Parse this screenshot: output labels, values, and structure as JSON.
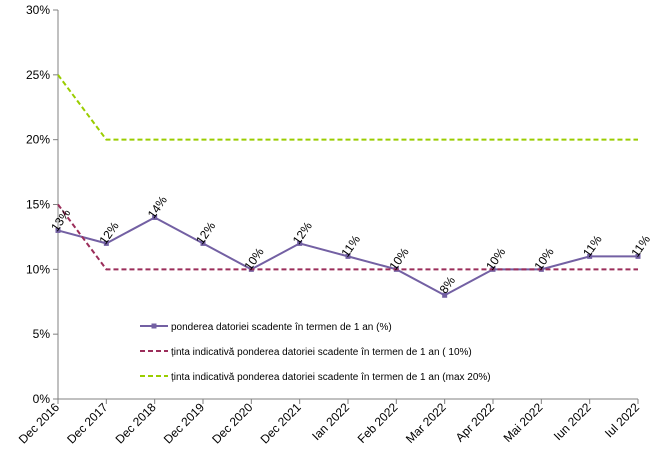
{
  "chart_data": {
    "type": "line",
    "categories": [
      "Dec 2016",
      "Dec 2017",
      "Dec 2018",
      "Dec 2019",
      "Dec 2020",
      "Dec 2021",
      "Ian 2022",
      "Feb 2022",
      "Mar 2022",
      "Apr 2022",
      "Mai 2022",
      "Iun 2022",
      "Iul 2022"
    ],
    "ylim": [
      0,
      30
    ],
    "yticks": [
      0,
      5,
      10,
      15,
      20,
      25,
      30
    ],
    "ytick_labels": [
      "0%",
      "5%",
      "10%",
      "15%",
      "20%",
      "25%",
      "30%"
    ],
    "grid": false,
    "legend_position": "bottom-left inside plot",
    "series": [
      {
        "name": "ponderea datoriei scadente în termen de 1 an (%)",
        "values": [
          13,
          12,
          14,
          12,
          10,
          12,
          11,
          10,
          8,
          10,
          10,
          11,
          11
        ],
        "data_labels": [
          "13%",
          "12%",
          "14%",
          "12%",
          "10%",
          "12%",
          "11%",
          "10%",
          "8%",
          "10%",
          "10%",
          "11%",
          "11%"
        ],
        "color": "#7360a3",
        "style": "solid-marker"
      },
      {
        "name": "ținta indicativă ponderea datoriei scadente în termen de 1 an (  10%)",
        "values": [
          15,
          10,
          10,
          10,
          10,
          10,
          10,
          10,
          10,
          10,
          10,
          10,
          10
        ],
        "color": "#9b2d5a",
        "style": "dashed"
      },
      {
        "name": "ținta indicativă ponderea datoriei scadente în termen de 1 an (max 20%)",
        "values": [
          25,
          20,
          20,
          20,
          20,
          20,
          20,
          20,
          20,
          20,
          20,
          20,
          20
        ],
        "color": "#9acd00",
        "style": "dashed"
      }
    ]
  }
}
